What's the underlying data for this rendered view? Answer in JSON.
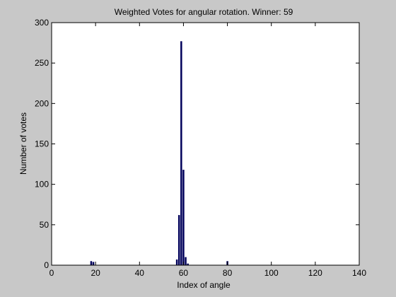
{
  "chart_data": {
    "type": "bar",
    "title": "Weighted Votes for angular rotation. Winner: 59",
    "xlabel": "Index of angle",
    "ylabel": "Number of votes",
    "xlim": [
      0,
      140
    ],
    "ylim": [
      0,
      300
    ],
    "xticks": [
      0,
      20,
      40,
      60,
      80,
      100,
      120,
      140
    ],
    "yticks": [
      0,
      50,
      100,
      150,
      200,
      250,
      300
    ],
    "grid": false,
    "bar_color": "#00005a",
    "figure_background": "#c8c8c8",
    "axes_background": "#ffffff",
    "x": [
      18,
      19,
      57,
      58,
      59,
      60,
      61,
      62,
      80
    ],
    "values": [
      5,
      4,
      7,
      62,
      277,
      118,
      10,
      2,
      5
    ]
  }
}
